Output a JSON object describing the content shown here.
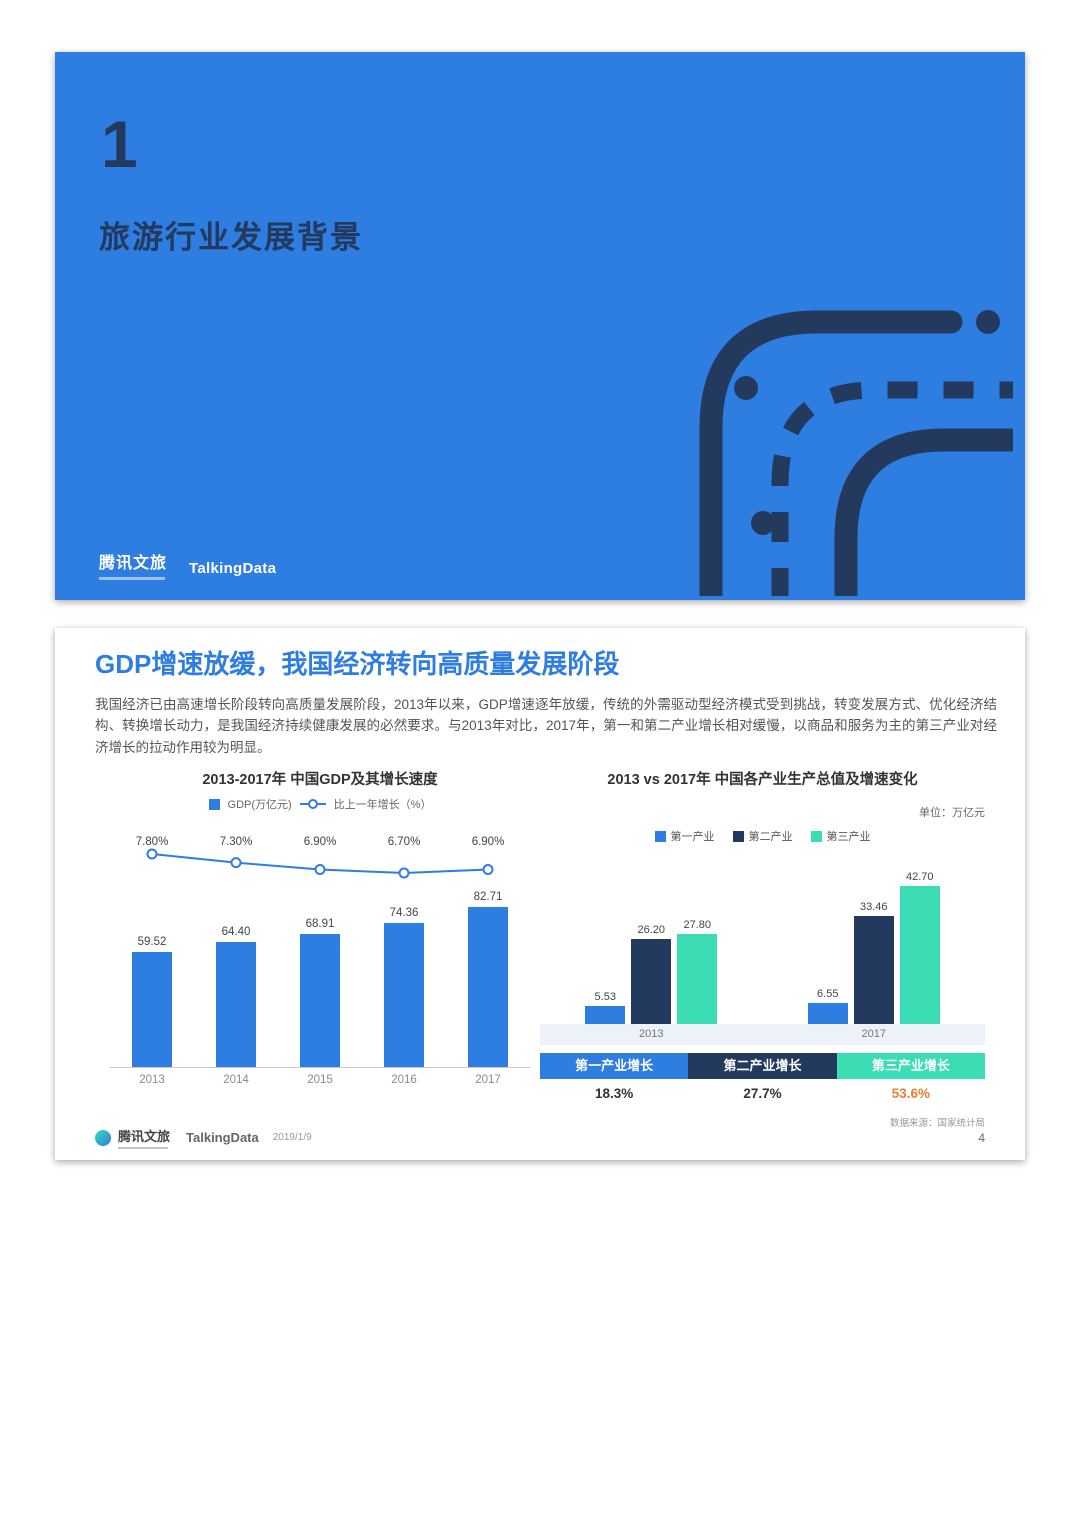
{
  "colors": {
    "blue": "#2E7DE1",
    "navy": "#233A5E",
    "teal": "#3CDCB4",
    "orange": "#ED7D31",
    "body_text": "#555555",
    "band": "#EDF1F8"
  },
  "cover": {
    "section_number": "1",
    "section_title": "旅游行业发展背景",
    "brand_primary": "腾讯文旅",
    "brand_secondary": "TalkingData"
  },
  "slide": {
    "title": "GDP增速放缓，我国经济转向高质量发展阶段",
    "paragraph": "我国经济已由高速增长阶段转向高质量发展阶段，2013年以来，GDP增速逐年放缓，传统的外需驱动型经济模式受到挑战，转变发展方式、优化经济结构、转换增长动力，是我国经济持续健康发展的必然要求。与2013年对比，2017年，第一和第二产业增长相对缓慢，以商品和服务为主的第三产业对经济增长的拉动作用较为明显。",
    "source": "数据来源：国家统计局",
    "footer": {
      "brand_primary": "腾讯文旅",
      "brand_secondary": "TalkingData",
      "date": "2019/1/9",
      "page_number": "4"
    }
  },
  "chart_data": [
    {
      "type": "bar",
      "subtype": "bar+line",
      "title": "2013-2017年 中国GDP及其增长速度",
      "categories": [
        "2013",
        "2014",
        "2015",
        "2016",
        "2017"
      ],
      "series": [
        {
          "name": "GDP(万亿元)",
          "type": "bar",
          "color": "#2E7DE1",
          "values": [
            59.52,
            64.4,
            68.91,
            74.36,
            82.71
          ]
        },
        {
          "name": "比上一年增长（%）",
          "type": "line",
          "color": "#2E7DE1",
          "values": [
            7.8,
            7.3,
            6.9,
            6.7,
            6.9
          ]
        }
      ],
      "ylim": [
        0,
        90
      ],
      "grid": false,
      "legend_position": "top"
    },
    {
      "type": "bar",
      "title": "2013 vs 2017年 中国各产业生产总值及增速变化",
      "unit_label": "单位：万亿元",
      "categories": [
        "2013",
        "2017"
      ],
      "series": [
        {
          "name": "第一产业",
          "color": "#2E7DE1",
          "values": [
            5.53,
            6.55
          ]
        },
        {
          "name": "第二产业",
          "color": "#233A5E",
          "values": [
            26.2,
            33.46
          ]
        },
        {
          "name": "第三产业",
          "color": "#3CDCB4",
          "values": [
            27.8,
            42.7
          ]
        }
      ],
      "growth_summary": [
        {
          "label": "第一产业增长",
          "value": "18.3%",
          "color": "#2E7DE1",
          "value_color": "#333333"
        },
        {
          "label": "第二产业增长",
          "value": "27.7%",
          "color": "#233A5E",
          "value_color": "#333333"
        },
        {
          "label": "第三产业增长",
          "value": "53.6%",
          "color": "#3CDCB4",
          "value_color": "#ED7D31"
        }
      ],
      "ylim": [
        0,
        45
      ],
      "grid": false,
      "legend_position": "top"
    }
  ]
}
